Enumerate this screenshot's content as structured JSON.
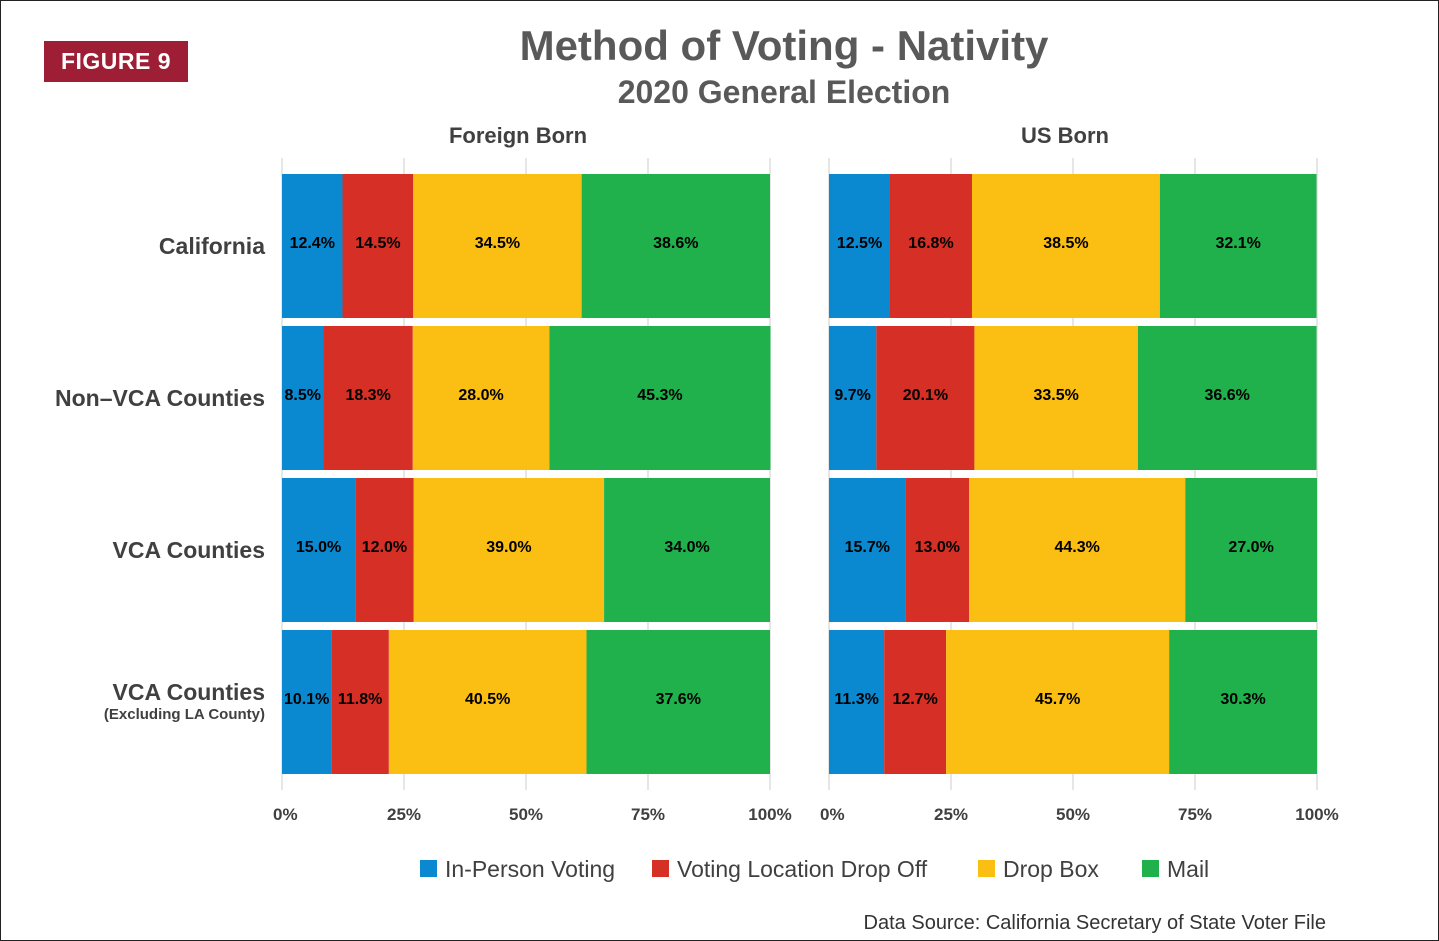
{
  "figure_label": "FIGURE 9",
  "source_note": "Data Source: California Secretary of State Voter File",
  "chart_data": {
    "type": "bar",
    "orientation": "horizontal",
    "stacked": true,
    "title": "Method of Voting - Nativity",
    "subtitle": "2020 General Election",
    "categories": [
      {
        "label": "California",
        "sublabel": ""
      },
      {
        "label": "Non–VCA Counties",
        "sublabel": ""
      },
      {
        "label": "VCA Counties",
        "sublabel": ""
      },
      {
        "label": "VCA Counties",
        "sublabel": "(Excluding LA County)"
      }
    ],
    "xlim": [
      0,
      100
    ],
    "xticks": [
      "0%",
      "25%",
      "50%",
      "75%",
      "100%"
    ],
    "grid": true,
    "legend_position": "bottom",
    "series_colors": [
      "#0a88d0",
      "#d62f26",
      "#fbbe12",
      "#20b14c"
    ],
    "panels": [
      {
        "title": "Foreign Born",
        "series": [
          {
            "name": "In-Person Voting",
            "values": [
              12.4,
              8.5,
              15.0,
              10.1
            ],
            "labels": [
              "12.4%",
              "8.5%",
              "15.0%",
              "10.1%"
            ]
          },
          {
            "name": "Voting Location Drop Off",
            "values": [
              14.5,
              18.3,
              12.0,
              11.8
            ],
            "labels": [
              "14.5%",
              "18.3%",
              "12.0%",
              "11.8%"
            ]
          },
          {
            "name": "Drop Box",
            "values": [
              34.5,
              28.0,
              39.0,
              40.5
            ],
            "labels": [
              "34.5%",
              "28.0%",
              "39.0%",
              "40.5%"
            ]
          },
          {
            "name": "Mail",
            "values": [
              38.6,
              45.3,
              34.0,
              37.6
            ],
            "labels": [
              "38.6%",
              "45.3%",
              "34.0%",
              "37.6%"
            ]
          }
        ]
      },
      {
        "title": "US Born",
        "series": [
          {
            "name": "In-Person Voting",
            "values": [
              12.5,
              9.7,
              15.7,
              11.3
            ],
            "labels": [
              "12.5%",
              "9.7%",
              "15.7%",
              "11.3%"
            ]
          },
          {
            "name": "Voting Location Drop Off",
            "values": [
              16.8,
              20.1,
              13.0,
              12.7
            ],
            "labels": [
              "16.8%",
              "20.1%",
              "13.0%",
              "12.7%"
            ]
          },
          {
            "name": "Drop Box",
            "values": [
              38.5,
              33.5,
              44.3,
              45.7
            ],
            "labels": [
              "38.5%",
              "33.5%",
              "44.3%",
              "45.7%"
            ]
          },
          {
            "name": "Mail",
            "values": [
              32.1,
              36.6,
              27.0,
              30.3
            ],
            "labels": [
              "32.1%",
              "36.6%",
              "27.0%",
              "30.3%"
            ]
          }
        ]
      }
    ],
    "legend": [
      "In-Person Voting",
      "Voting Location Drop Off",
      "Drop Box",
      "Mail"
    ]
  }
}
